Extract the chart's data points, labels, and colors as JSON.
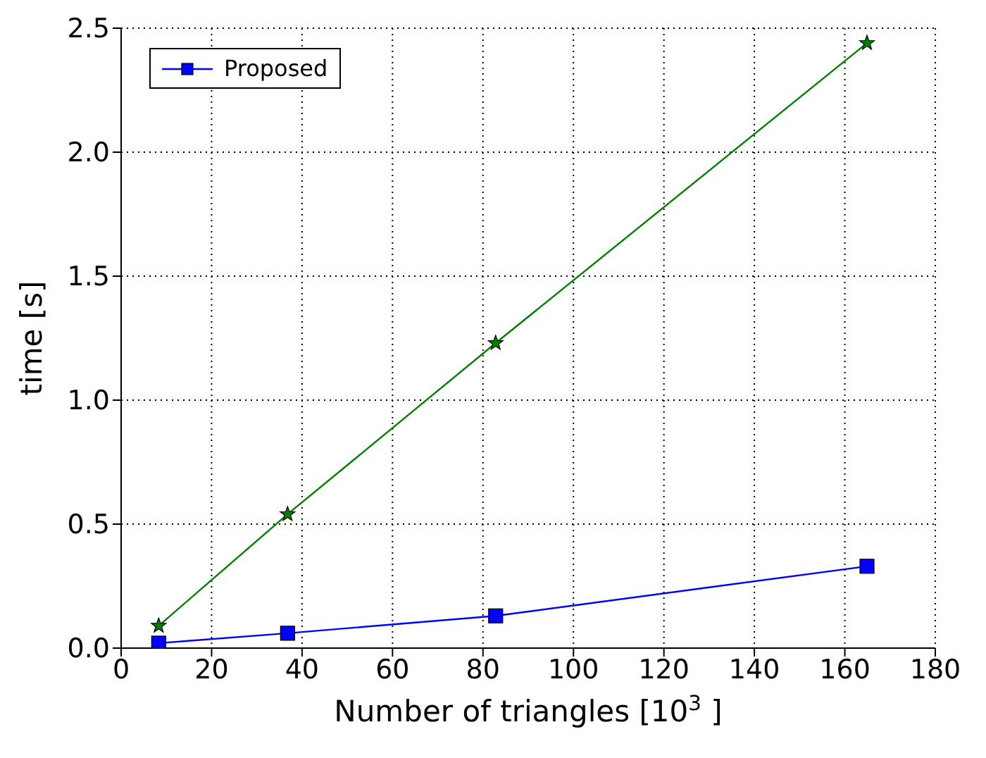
{
  "chart_data": {
    "type": "line",
    "xlabel": "Number of triangles [10$^{3}$ ]",
    "ylabel": "time [s]",
    "x": [
      8.3,
      36.8,
      82.8,
      164.9
    ],
    "series": [
      {
        "name": "Proposed",
        "color": "#0000ff",
        "values": [
          0.02,
          0.06,
          0.13,
          0.33
        ],
        "marker": "square"
      },
      {
        "color": "#007f00",
        "values": [
          0.09,
          0.54,
          1.23,
          2.44
        ],
        "marker": "star"
      }
    ],
    "xlim": [
      0,
      180
    ],
    "xticks": [
      0,
      20,
      40,
      60,
      80,
      100,
      120,
      140,
      160,
      180
    ],
    "ylim": [
      0,
      2.5
    ],
    "yticks": [
      {
        "value": 0,
        "label": "0.0"
      },
      0.5,
      {
        "value": 1,
        "label": "1.0"
      },
      1.5,
      {
        "value": 2,
        "label": "2.0"
      },
      2.5
    ],
    "grid": true,
    "legend": "top left"
  }
}
